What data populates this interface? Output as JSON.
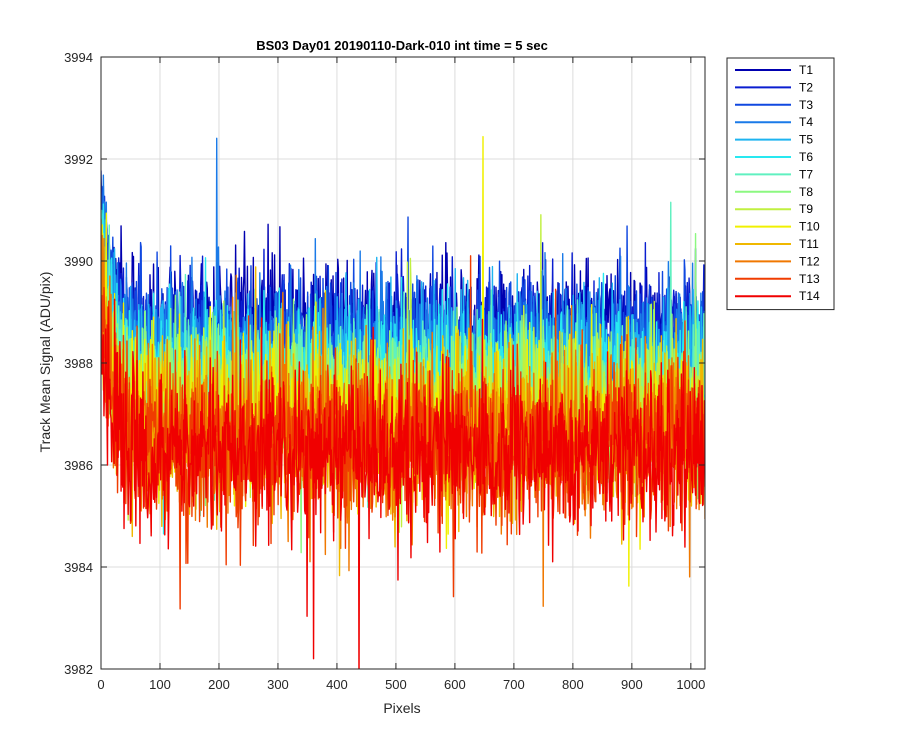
{
  "chart_data": {
    "type": "line",
    "title": "BS03 Day01 20190110-Dark-010 int time = 5 sec",
    "xlabel": "Pixels",
    "ylabel": "Track Mean Signal (ADU/pix)",
    "xlim": [
      0,
      1024
    ],
    "ylim": [
      3982,
      3994
    ],
    "xticks": [
      0,
      100,
      200,
      300,
      400,
      500,
      600,
      700,
      800,
      900,
      1000
    ],
    "yticks": [
      3982,
      3984,
      3986,
      3988,
      3990,
      3992,
      3994
    ],
    "grid": true,
    "legend_position": "outside-top-right",
    "num_points_per_series": 1024,
    "series": [
      {
        "name": "T1",
        "color": "#0000b0",
        "mean": 3988.7,
        "noise": 0.65,
        "start": 3991.3
      },
      {
        "name": "T2",
        "color": "#0a1ed0",
        "mean": 3988.5,
        "noise": 0.65,
        "start": 3991.1
      },
      {
        "name": "T3",
        "color": "#1048e0",
        "mean": 3988.3,
        "noise": 0.65,
        "start": 3990.9
      },
      {
        "name": "T4",
        "color": "#1a7ae8",
        "mean": 3988.1,
        "noise": 0.68,
        "start": 3990.8
      },
      {
        "name": "T5",
        "color": "#1eb4f0",
        "mean": 3987.9,
        "noise": 0.7,
        "start": 3990.6
      },
      {
        "name": "T6",
        "color": "#28e8f0",
        "mean": 3987.7,
        "noise": 0.7,
        "start": 3990.4
      },
      {
        "name": "T7",
        "color": "#60f0c0",
        "mean": 3987.5,
        "noise": 0.7,
        "start": 3990.2
      },
      {
        "name": "T8",
        "color": "#8cf880",
        "mean": 3987.3,
        "noise": 0.72,
        "start": 3990.0
      },
      {
        "name": "T9",
        "color": "#c0f040",
        "mean": 3987.1,
        "noise": 0.72,
        "start": 3989.9
      },
      {
        "name": "T10",
        "color": "#f0f000",
        "mean": 3986.9,
        "noise": 0.75,
        "start": 3989.7
      },
      {
        "name": "T11",
        "color": "#f0b800",
        "mean": 3986.7,
        "noise": 0.75,
        "start": 3989.5
      },
      {
        "name": "T12",
        "color": "#f07800",
        "mean": 3986.5,
        "noise": 0.78,
        "start": 3989.3
      },
      {
        "name": "T13",
        "color": "#f03c00",
        "mean": 3986.4,
        "noise": 0.78,
        "start": 3989.1
      },
      {
        "name": "T14",
        "color": "#f00000",
        "mean": 3986.3,
        "noise": 0.8,
        "start": 3988.9
      }
    ]
  }
}
